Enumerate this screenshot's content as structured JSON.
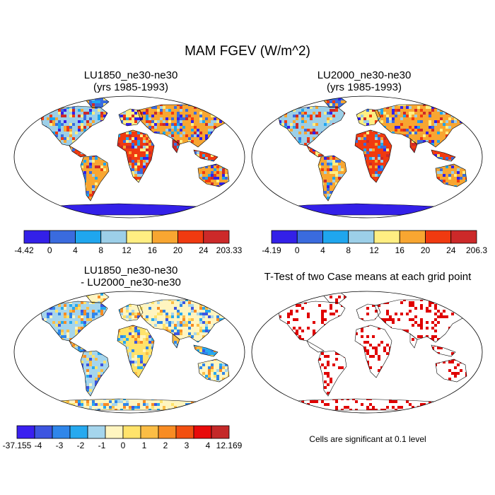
{
  "title": "MAM FGEV (W/m^2)",
  "panels": [
    {
      "title_line1": "LU1850_ne30-ne30",
      "title_line2": "(yrs 1985-1993)",
      "colorbar": {
        "labels": [
          "-4.42",
          "0",
          "4",
          "8",
          "12",
          "16",
          "20",
          "24",
          "203.33"
        ],
        "colors": [
          "#3320e8",
          "#3a6bde",
          "#1fa6ee",
          "#9ccfe8",
          "#ffee82",
          "#f8a631",
          "#f03a10",
          "#cc2929"
        ]
      }
    },
    {
      "title_line1": "LU2000_ne30-ne30",
      "title_line2": "(yrs 1985-1993)",
      "colorbar": {
        "labels": [
          "-4.19",
          "0",
          "4",
          "8",
          "12",
          "16",
          "20",
          "24",
          "206.3"
        ],
        "colors": [
          "#3320e8",
          "#3a6bde",
          "#1fa6ee",
          "#9ccfe8",
          "#ffee82",
          "#f8a631",
          "#f03a10",
          "#cc2929"
        ]
      }
    },
    {
      "title_line1": "LU1850_ne30-ne30",
      "title_line2": "- LU2000_ne30-ne30",
      "colorbar": {
        "labels": [
          "-37.155",
          "-4",
          "-3",
          "-2",
          "-1",
          "0",
          "1",
          "2",
          "3",
          "4",
          "12.169"
        ],
        "colors": [
          "#3a20f0",
          "#3d55e0",
          "#2f86ea",
          "#26a9ef",
          "#a5d5ec",
          "#fff5c0",
          "#ffe36b",
          "#fbbd45",
          "#f88c23",
          "#f24f10",
          "#e80a0a",
          "#c42828"
        ]
      }
    },
    {
      "title_line1": "T-Test of two Case means at each grid point",
      "note": "Cells are significant at 0.1 level",
      "colors": {
        "significant": "#e00000"
      }
    }
  ]
}
